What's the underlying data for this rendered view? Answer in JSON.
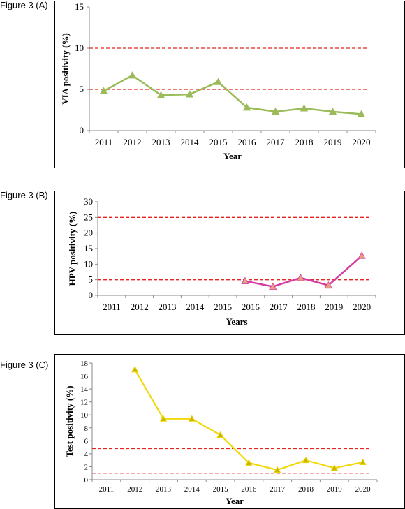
{
  "labels": {
    "a": "Figure 3 (A)",
    "b": "Figure 3 (B)",
    "c": "Figure 3 (C)"
  },
  "chart_data": [
    {
      "type": "line",
      "categories": [
        "2011",
        "2012",
        "2013",
        "2014",
        "2015",
        "2016",
        "2017",
        "2018",
        "2019",
        "2020"
      ],
      "series": [
        {
          "values": [
            4.8,
            6.7,
            4.3,
            4.4,
            5.9,
            2.8,
            2.3,
            2.7,
            2.3,
            2.0
          ],
          "color": "#9bbb59",
          "marker": "triangle"
        }
      ],
      "reference_lines": [
        {
          "y": 10,
          "color": "#e8241f",
          "style": "dashed"
        },
        {
          "y": 5,
          "color": "#e8241f",
          "style": "dashed"
        }
      ],
      "xlabel": "Year",
      "ylabel": "VIA positivity (%)",
      "ylim": [
        0,
        15
      ],
      "yticks": [
        0,
        5,
        10,
        15
      ]
    },
    {
      "type": "line",
      "categories": [
        "2011",
        "2012",
        "2013",
        "2014",
        "2015",
        "2016",
        "2017",
        "2018",
        "2019",
        "2020"
      ],
      "series": [
        {
          "values": [
            null,
            null,
            null,
            null,
            null,
            4.6,
            2.8,
            5.6,
            3.2,
            12.7
          ],
          "color": "#d63ca0",
          "marker_color": "#e8a07c",
          "marker": "triangle"
        }
      ],
      "reference_lines": [
        {
          "y": 25,
          "color": "#e8241f",
          "style": "dashed"
        },
        {
          "y": 5,
          "color": "#e8241f",
          "style": "dashed"
        }
      ],
      "xlabel": "Years",
      "ylabel": "HPV positivity (%)",
      "ylim": [
        0,
        30
      ],
      "yticks": [
        0,
        5,
        10,
        15,
        20,
        25,
        30
      ]
    },
    {
      "type": "line",
      "categories": [
        "2011",
        "2012",
        "2013",
        "2014",
        "2015",
        "2016",
        "2017",
        "2018",
        "2019",
        "2020"
      ],
      "series": [
        {
          "values": [
            null,
            17.0,
            9.4,
            9.4,
            6.9,
            2.6,
            1.5,
            3.0,
            1.8,
            2.7
          ],
          "color": "#f2d80a",
          "marker_color": "#c9b800",
          "marker": "triangle"
        }
      ],
      "reference_lines": [
        {
          "y": 4.8,
          "color": "#e8241f",
          "style": "dashed"
        },
        {
          "y": 1.0,
          "color": "#e8241f",
          "style": "dashed"
        }
      ],
      "xlabel": "Year",
      "ylabel": "Test positivity (%)",
      "ylim": [
        0,
        18
      ],
      "yticks": [
        0,
        2,
        4,
        6,
        8,
        10,
        12,
        14,
        16,
        18
      ]
    }
  ]
}
